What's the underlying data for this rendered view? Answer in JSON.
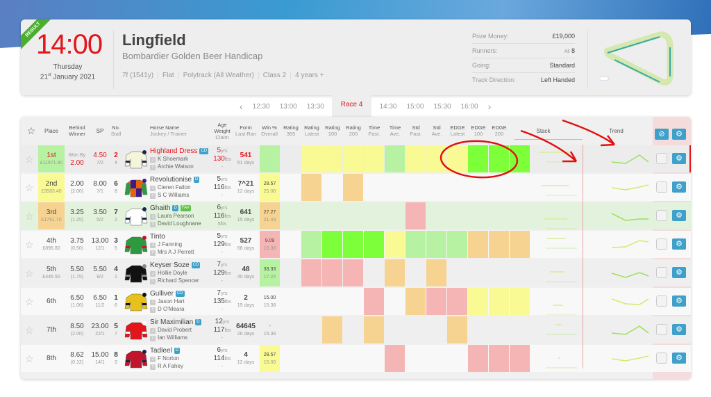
{
  "header": {
    "badge": "RESULT",
    "time": "14:00",
    "day": "Thursday",
    "date_day": "21",
    "date_suffix": "st",
    "date_rest": "January 2021",
    "course": "Lingfield",
    "race_name": "Bombardier Golden Beer Handicap",
    "meta": [
      "7f (1541y)",
      "Flat",
      "Polytrack (All Weather)",
      "Class 2",
      "4 years +"
    ],
    "info": [
      {
        "label": "Prize Money:",
        "value": "£19,000"
      },
      {
        "label": "Runners:",
        "prefix": "All",
        "value": "8"
      },
      {
        "label": "Going:",
        "value": "Standard"
      },
      {
        "label": "Track Direction:",
        "value": "Left Handed"
      }
    ]
  },
  "nav": {
    "prev": "‹",
    "before": [
      "12:30",
      "13:00",
      "13:30"
    ],
    "active": "Race 4",
    "after": [
      "14:30",
      "15:00",
      "15:30",
      "16:00"
    ],
    "next": "›"
  },
  "columns": {
    "place": "Place",
    "behind": [
      "Behind",
      "Winner"
    ],
    "sp": "SP",
    "no": [
      "No.",
      "Stall"
    ],
    "horse": [
      "Horse Name",
      "Jockey / Trainer"
    ],
    "age": [
      "Age",
      "Weight",
      "Claim"
    ],
    "form": [
      "Form",
      "Last Ran"
    ],
    "win": [
      "Win %",
      "Overall"
    ],
    "ratings": [
      [
        "Rating",
        "365"
      ],
      [
        "Rating",
        "Latest"
      ],
      [
        "Rating",
        "100"
      ],
      [
        "Rating",
        "200"
      ],
      [
        "Time",
        "Fast."
      ],
      [
        "Time",
        "Ave."
      ],
      [
        "Std",
        "Fast."
      ],
      [
        "Std",
        "Ave."
      ],
      [
        "EDGE",
        "Latest"
      ],
      [
        "EDGE",
        "100"
      ],
      [
        "EDGE",
        "200"
      ]
    ],
    "stack": "Stack",
    "trend": "Trend"
  },
  "colors": {
    "Y": "#fafa94",
    "L": "#b6f2a1",
    "G": "#7dff3a",
    "O": "#f7d391",
    "R": "#f6b5b5",
    "accent": "#e3141a",
    "button": "#3fa0c9"
  },
  "rows": [
    {
      "place": "1st",
      "prize": "£11971.90",
      "behind": "2.00",
      "behind_label": "Won By",
      "sp": "4.50",
      "sp_frac": "7/2",
      "no": "2",
      "stall": "4",
      "name": "Highland Dress",
      "tags": [
        "CD"
      ],
      "jockey": "K Shoemark",
      "trainer": "Archie Watson",
      "age": "5",
      "weight": "130",
      "claim": "-",
      "form": "541",
      "last_ran": "61 days",
      "win": "",
      "overall": "",
      "win_color": "L",
      "place_color": "#b6f2a1",
      "ratings": [
        "Y",
        "Y",
        "Y",
        "Y",
        "L",
        "Y",
        "Y",
        "Y",
        "G",
        "G",
        "G"
      ],
      "silk": [
        "#f5f5dc",
        "#1a2550"
      ]
    },
    {
      "place": "2nd",
      "prize": "£3583.40",
      "behind": "2.00",
      "behind_sub": "(2.00)",
      "sp": "8.00",
      "sp_frac": "7/1",
      "no": "6",
      "stall": "8",
      "name": "Revolutionise",
      "tags": [
        "D"
      ],
      "jockey": "Cieren Fallon",
      "trainer": "S C Williams",
      "age": "5",
      "weight": "116",
      "claim": "-",
      "form": "7^21",
      "last_ran": "12 days",
      "win": "28.57",
      "overall": "25.00",
      "win_color": "Y",
      "place_color": "#fafa94",
      "ratings": [
        "O",
        "",
        "O",
        "",
        "",
        "",
        "",
        "",
        "",
        "",
        ""
      ],
      "silk": [
        "#e8620c",
        "#3b1d8a",
        "#2f9a45"
      ]
    },
    {
      "place": "3rd",
      "prize": "£1791.70",
      "behind": "3.25",
      "behind_sub": "(1.25)",
      "sp": "3.50",
      "sp_frac": "5/2",
      "no": "7",
      "stall": "2",
      "name": "Ghaith",
      "tags": [
        "D",
        "FAV"
      ],
      "jockey": "Laura Pearson",
      "trainer": "David Loughnane",
      "age": "6",
      "weight": "116",
      "claim": "5lbs",
      "form": "641",
      "last_ran": "15 days",
      "win": "27.27",
      "overall": "21.43",
      "win_color": "O",
      "place_color": "#f7d391",
      "ratings": [
        "",
        "",
        "",
        "",
        "",
        "R",
        "",
        "",
        "",
        "",
        ""
      ],
      "silk": [
        "#ffffff",
        "#1a2550"
      ]
    },
    {
      "place": "4th",
      "prize": "£896.80",
      "behind": "3.75",
      "behind_sub": "(0.50)",
      "sp": "13.00",
      "sp_frac": "12/1",
      "no": "3",
      "stall": "5",
      "name": "Tinto",
      "tags": [],
      "jockey": "J Fanning",
      "trainer": "Mrs A J Perrett",
      "age": "5",
      "weight": "129",
      "claim": "-",
      "form": "527",
      "last_ran": "68 days",
      "win": "9.09",
      "overall": "15.38",
      "win_color": "R",
      "place_color": "",
      "ratings": [
        "L",
        "G",
        "G",
        "G",
        "Y",
        "L",
        "L",
        "L",
        "O",
        "O",
        "O"
      ],
      "silk": [
        "#2e9a3f",
        "#c0152a"
      ]
    },
    {
      "place": "5th",
      "prize": "£446.50",
      "behind": "5.50",
      "behind_sub": "(1.75)",
      "sp": "5.50",
      "sp_frac": "9/2",
      "no": "4",
      "stall": "1",
      "name": "Keyser Soze",
      "tags": [
        "CD"
      ],
      "jockey": "Hollie Doyle",
      "trainer": "Richard Spencer",
      "age": "7",
      "weight": "129",
      "claim": "-",
      "form": "48",
      "last_ran": "40 days",
      "win": "33.33",
      "overall": "17.24",
      "win_color": "L",
      "place_color": "",
      "ratings": [
        "R",
        "R",
        "R",
        "",
        "O",
        "",
        "O",
        "",
        "",
        "",
        ""
      ],
      "silk": [
        "#111111",
        "#888888"
      ]
    },
    {
      "place": "6th",
      "prize": "",
      "behind": "6.50",
      "behind_sub": "(1.00)",
      "sp": "6.50",
      "sp_frac": "11/2",
      "no": "1",
      "stall": "6",
      "name": "Gulliver",
      "tags": [
        "CD"
      ],
      "jockey": "Jason Hart",
      "trainer": "D O'Meara",
      "age": "7",
      "weight": "135",
      "claim": "-",
      "form": "2",
      "last_ran": "15 days",
      "win": "15.00",
      "overall": "15.38",
      "win_color": "",
      "place_color": "",
      "ratings": [
        "",
        "",
        "",
        "R",
        "",
        "O",
        "R",
        "R",
        "Y",
        "Y",
        "Y"
      ],
      "silk": [
        "#e8c21a",
        "#111111"
      ]
    },
    {
      "place": "7th",
      "prize": "",
      "behind": "8.50",
      "behind_sub": "(2.00)",
      "sp": "23.00",
      "sp_frac": "22/1",
      "no": "5",
      "stall": "7",
      "name": "Sir Maximilian",
      "tags": [
        "D"
      ],
      "jockey": "David Probert",
      "trainer": "Ian Williams",
      "age": "12",
      "weight": "117",
      "claim": "-",
      "form": "64645",
      "last_ran": "26 days",
      "win": "-",
      "overall": "15.38",
      "win_color": "",
      "place_color": "",
      "ratings": [
        "",
        "O",
        "",
        "O",
        "",
        "",
        "",
        "O",
        "",
        "",
        ""
      ],
      "silk": [
        "#e3141a",
        "#ffffff"
      ]
    },
    {
      "place": "8th",
      "prize": "",
      "behind": "8.62",
      "behind_sub": "(0.12)",
      "sp": "15.00",
      "sp_frac": "14/1",
      "no": "8",
      "stall": "3",
      "name": "Tadleel",
      "tags": [
        "D"
      ],
      "jockey": "F Norton",
      "trainer": "R A Fahey",
      "age": "6",
      "weight": "114",
      "claim": "-",
      "form": "4",
      "last_ran": "12 days",
      "win": "28.57",
      "overall": "15.00",
      "win_color": "Y",
      "place_color": "",
      "ratings": [
        "",
        "",
        "",
        "",
        "R",
        "",
        "",
        "",
        "R",
        "R",
        "R"
      ],
      "silk": [
        "#c0152a",
        "#1a2550"
      ]
    }
  ],
  "labels": {
    "jockey": "J",
    "trainer": "T",
    "yrs": "yrs",
    "lbs": "lbs"
  }
}
